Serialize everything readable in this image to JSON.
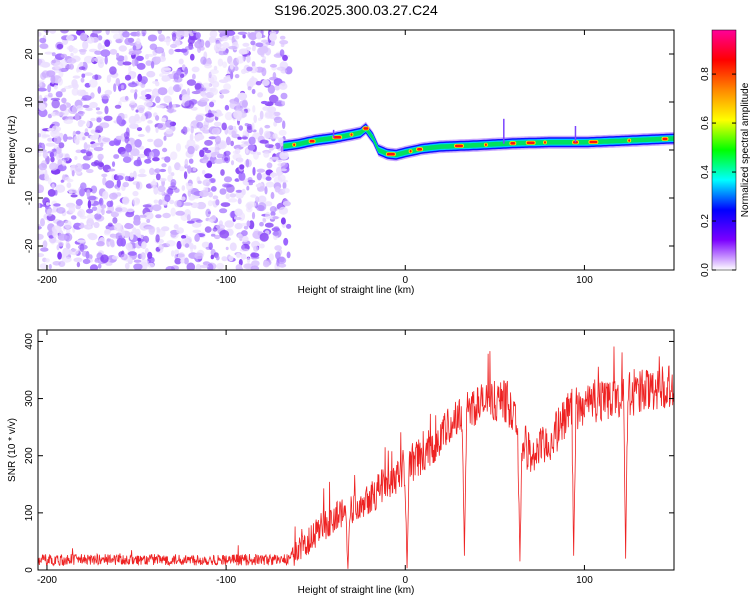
{
  "title": "S196.2025.300.03.27.C24",
  "chart_data": [
    {
      "type": "heatmap",
      "xlabel": "Height of straight line (km)",
      "ylabel": "Frequency (Hz)",
      "xlim": [
        -205,
        150
      ],
      "ylim": [
        -25,
        25
      ],
      "x_ticks": [
        -200,
        -100,
        0,
        100
      ],
      "x_tick_labels": [
        "-200",
        "-100",
        "0",
        "100"
      ],
      "y_ticks": [
        -20,
        -10,
        0,
        10,
        20
      ],
      "y_tick_labels": [
        "-20",
        "-10",
        "0",
        "10",
        "20"
      ],
      "noise_region_x": [
        -205,
        -65
      ],
      "ridge": {
        "x": [
          -68,
          -60,
          -50,
          -40,
          -30,
          -25,
          -22,
          -18,
          -15,
          -10,
          -5,
          0,
          10,
          20,
          40,
          60,
          80,
          100,
          120,
          150
        ],
        "freq": [
          0.8,
          1.2,
          2.0,
          2.5,
          3.2,
          3.6,
          4.5,
          2.5,
          0.0,
          -0.8,
          -1.0,
          -0.5,
          0.3,
          0.7,
          1.0,
          1.4,
          1.6,
          1.6,
          1.9,
          2.4
        ]
      },
      "colorbar": {
        "label": "Normalized spectral amplitude",
        "min": 0.0,
        "max": 0.98,
        "ticks": [
          0.0,
          0.2,
          0.4,
          0.6,
          0.8
        ],
        "tick_labels": [
          "0.0",
          "0.2",
          "0.4",
          "0.6",
          "0.8"
        ],
        "colors": [
          "#ffffff",
          "#7b00ff",
          "#0000ff",
          "#00ffff",
          "#00ff00",
          "#ffff00",
          "#ff8800",
          "#ff0000",
          "#ff0099"
        ]
      }
    },
    {
      "type": "line",
      "xlabel": "Height of straight line (km)",
      "ylabel": "SNR (10 * v/v)",
      "xlim": [
        -205,
        150
      ],
      "ylim": [
        0,
        420
      ],
      "x_ticks": [
        -200,
        -100,
        0,
        100
      ],
      "x_tick_labels": [
        "-200",
        "-100",
        "0",
        "100"
      ],
      "y_ticks": [
        0,
        100,
        200,
        300,
        400
      ],
      "y_tick_labels": [
        "0",
        "100",
        "200",
        "300",
        "400"
      ],
      "series": [
        {
          "name": "SNR",
          "color": "#ee2222",
          "trend": {
            "x": [
              -205,
              -65,
              -55,
              -45,
              -30,
              -15,
              0,
              10,
              20,
              30,
              40,
              50,
              57,
              63,
              70,
              80,
              90,
              100,
              110,
              120,
              130,
              140,
              150
            ],
            "y": [
              18,
              18,
              45,
              80,
              110,
              140,
              180,
              200,
              235,
              270,
              290,
              295,
              295,
              240,
              200,
              220,
              270,
              290,
              300,
              305,
              310,
              320,
              325
            ]
          },
          "noise_amplitude": [
            {
              "x": -205,
              "amp": 10
            },
            {
              "x": -65,
              "amp": 10
            },
            {
              "x": -60,
              "amp": 25
            },
            {
              "x": 0,
              "amp": 35
            },
            {
              "x": 150,
              "amp": 40
            }
          ],
          "dips": [
            {
              "x": -32,
              "y": 2
            },
            {
              "x": 1,
              "y": 3
            },
            {
              "x": 33,
              "y": 25
            },
            {
              "x": 64,
              "y": 15
            },
            {
              "x": 94,
              "y": 25
            },
            {
              "x": 123,
              "y": 20
            }
          ]
        }
      ]
    }
  ]
}
